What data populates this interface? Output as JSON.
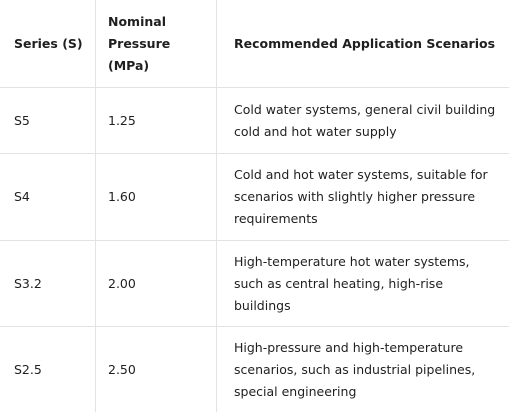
{
  "table": {
    "headers": {
      "series": "Series (S)",
      "pressure_line1": "Nominal",
      "pressure_line2": "Pressure",
      "pressure_line3": "(MPa)",
      "application": "Recommended Application Scenarios"
    },
    "rows": [
      {
        "series": "S5",
        "pressure": "1.25",
        "application_lines": [
          "Cold water systems, general civil building",
          "cold and hot water supply"
        ]
      },
      {
        "series": "S4",
        "pressure": "1.60",
        "application_lines": [
          "Cold and hot water systems, suitable for",
          "scenarios with slightly higher pressure",
          "requirements"
        ]
      },
      {
        "series": "S3.2",
        "pressure": "2.00",
        "application_lines": [
          "High-temperature hot water systems,",
          "such as central heating, high-rise",
          "buildings"
        ]
      },
      {
        "series": "S2.5",
        "pressure": "2.50",
        "application_lines": [
          "High-pressure and high-temperature",
          "scenarios, such as industrial pipelines,",
          "special engineering"
        ]
      }
    ]
  }
}
